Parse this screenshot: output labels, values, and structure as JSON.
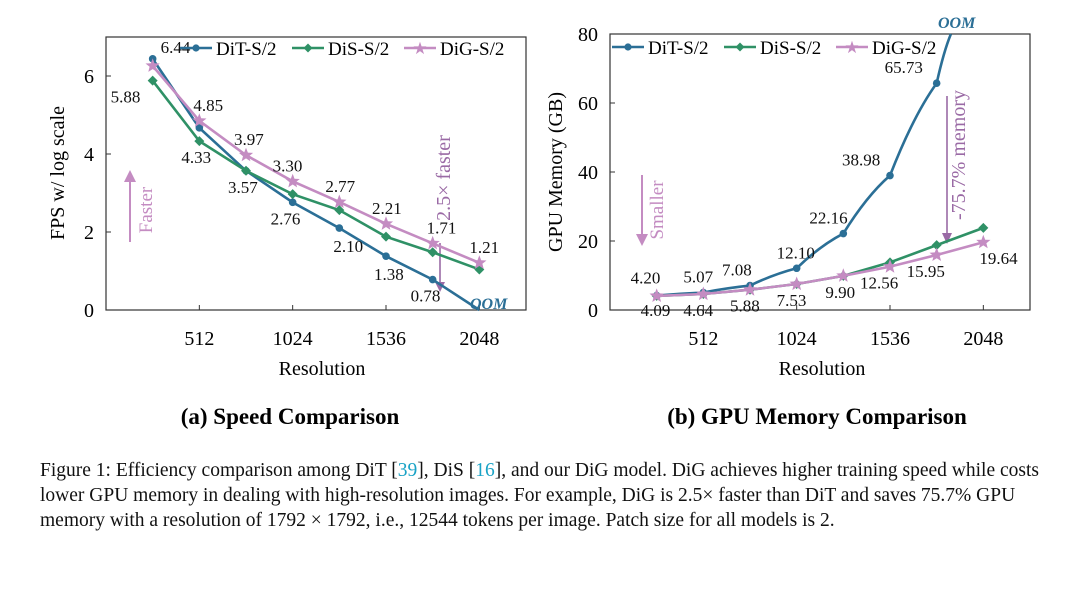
{
  "colors": {
    "dit": "#2b6f96",
    "dis": "#2f9166",
    "dig": "#c48cc2",
    "oom": "#2b6f96",
    "cite": "#1aa3c6"
  },
  "legend": [
    "DiT-S/2",
    "DiS-S/2",
    "DiG-S/2"
  ],
  "subcaption_a": "(a) Speed Comparison",
  "subcaption_b": "(b) GPU Memory Comparison",
  "caption": {
    "prefix": "Figure 1: Efficiency comparison among DiT [",
    "cite1": "39",
    "mid1": "], DiS [",
    "cite2": "16",
    "rest": "], and our DiG model. DiG achieves higher training speed while costs lower GPU memory in dealing with high-resolution images. For example, DiG is 2.5× faster than DiT and saves 75.7% GPU memory with a resolution of 1792 × 1792, i.e., 12544 tokens per image. Patch size for all models is 2."
  },
  "chart_data": [
    {
      "type": "line",
      "id": "speed",
      "title": "(a) Speed Comparison",
      "xlabel": "Resolution",
      "ylabel": "FPS w/ log scale",
      "xlim": [
        0,
        2304
      ],
      "ylim": [
        0,
        7
      ],
      "xticks": [
        512,
        1024,
        1536,
        2048
      ],
      "yticks": [
        0,
        2,
        4,
        6
      ],
      "x": [
        256,
        512,
        768,
        1024,
        1280,
        1536,
        1792,
        2048
      ],
      "series": [
        {
          "name": "DiT-S/2",
          "color": "#2b6f96",
          "marker": "circle",
          "values": [
            6.44,
            4.67,
            3.57,
            2.76,
            2.1,
            1.38,
            0.78,
            0.0
          ],
          "labels": [
            "6.44",
            null,
            null,
            "2.76",
            "2.10",
            "1.38",
            "0.78",
            null
          ]
        },
        {
          "name": "DiS-S/2",
          "color": "#2f9166",
          "marker": "diamond",
          "values": [
            5.88,
            4.33,
            3.57,
            2.97,
            2.56,
            1.88,
            1.48,
            1.04
          ],
          "labels": [
            "5.88",
            "4.33",
            "3.57",
            null,
            null,
            null,
            null,
            null
          ]
        },
        {
          "name": "DiG-S/2",
          "color": "#c48cc2",
          "marker": "star",
          "values": [
            6.26,
            4.85,
            3.97,
            3.3,
            2.77,
            2.21,
            1.71,
            1.21
          ],
          "labels": [
            null,
            "4.85",
            "3.97",
            "3.30",
            "2.77",
            "2.21",
            "1.71",
            "1.21"
          ]
        }
      ],
      "annotations": {
        "oom": "OOM",
        "arrow_label": "Faster",
        "gap_label": "2.5× faster"
      }
    },
    {
      "type": "line",
      "id": "memory",
      "title": "(b) GPU Memory Comparison",
      "xlabel": "Resolution",
      "ylabel": "GPU Memory (GB)",
      "xlim": [
        0,
        2304
      ],
      "ylim": [
        0,
        80
      ],
      "xticks": [
        512,
        1024,
        1536,
        2048
      ],
      "yticks": [
        0,
        20,
        40,
        60,
        80
      ],
      "x": [
        256,
        512,
        768,
        1024,
        1280,
        1536,
        1792,
        2048
      ],
      "series": [
        {
          "name": "DiT-S/2",
          "color": "#2b6f96",
          "marker": "circle",
          "values": [
            4.2,
            5.07,
            7.08,
            12.1,
            22.16,
            38.98,
            65.73,
            null
          ],
          "labels": [
            "4.20",
            "5.07",
            "7.08",
            "12.10",
            "22.16",
            "38.98",
            "65.73",
            null
          ]
        },
        {
          "name": "DiS-S/2",
          "color": "#2f9166",
          "marker": "diamond",
          "values": [
            4.09,
            4.64,
            5.88,
            7.53,
            9.9,
            13.8,
            18.8,
            23.8
          ],
          "labels": [
            null,
            null,
            null,
            null,
            null,
            null,
            null,
            null
          ]
        },
        {
          "name": "DiG-S/2",
          "color": "#c48cc2",
          "marker": "star",
          "values": [
            4.09,
            4.64,
            5.88,
            7.53,
            9.9,
            12.56,
            15.95,
            19.64
          ],
          "labels": [
            "4.09",
            "4.64",
            "5.88",
            "7.53",
            "9.90",
            "12.56",
            "15.95",
            "19.64"
          ]
        }
      ],
      "annotations": {
        "oom": "OOM",
        "arrow_label": "Smaller",
        "gap_label": "-75.7% memory"
      }
    }
  ]
}
